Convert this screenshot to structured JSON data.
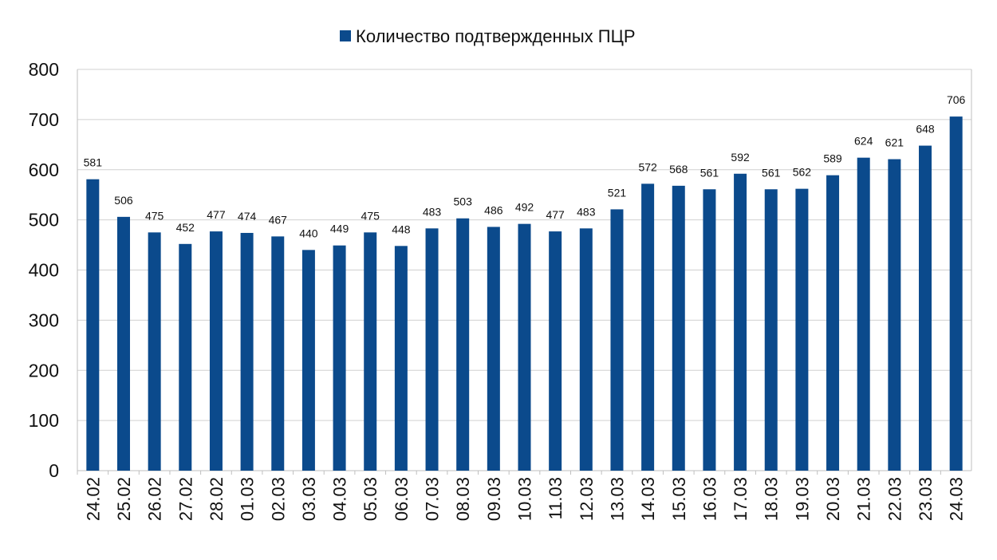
{
  "chart_data": {
    "type": "bar",
    "title": "",
    "xlabel": "",
    "ylabel": "",
    "ylim": [
      0,
      800
    ],
    "yticks": [
      0,
      100,
      200,
      300,
      400,
      500,
      600,
      700,
      800
    ],
    "grid": true,
    "legend_position": "top-center",
    "categories": [
      "24.02",
      "25.02",
      "26.02",
      "27.02",
      "28.02",
      "01.03",
      "02.03",
      "03.03",
      "04.03",
      "05.03",
      "06.03",
      "07.03",
      "08.03",
      "09.03",
      "10.03",
      "11.03",
      "12.03",
      "13.03",
      "14.03",
      "15.03",
      "16.03",
      "17.03",
      "18.03",
      "19.03",
      "20.03",
      "21.03",
      "22.03",
      "23.03",
      "24.03"
    ],
    "series": [
      {
        "name": "Количество подтвержденных ПЦР",
        "color": "#0b4a8c",
        "values": [
          581,
          506,
          475,
          452,
          477,
          474,
          467,
          440,
          449,
          475,
          448,
          483,
          503,
          486,
          492,
          477,
          483,
          521,
          572,
          568,
          561,
          592,
          561,
          562,
          589,
          624,
          621,
          648,
          706
        ]
      }
    ]
  }
}
